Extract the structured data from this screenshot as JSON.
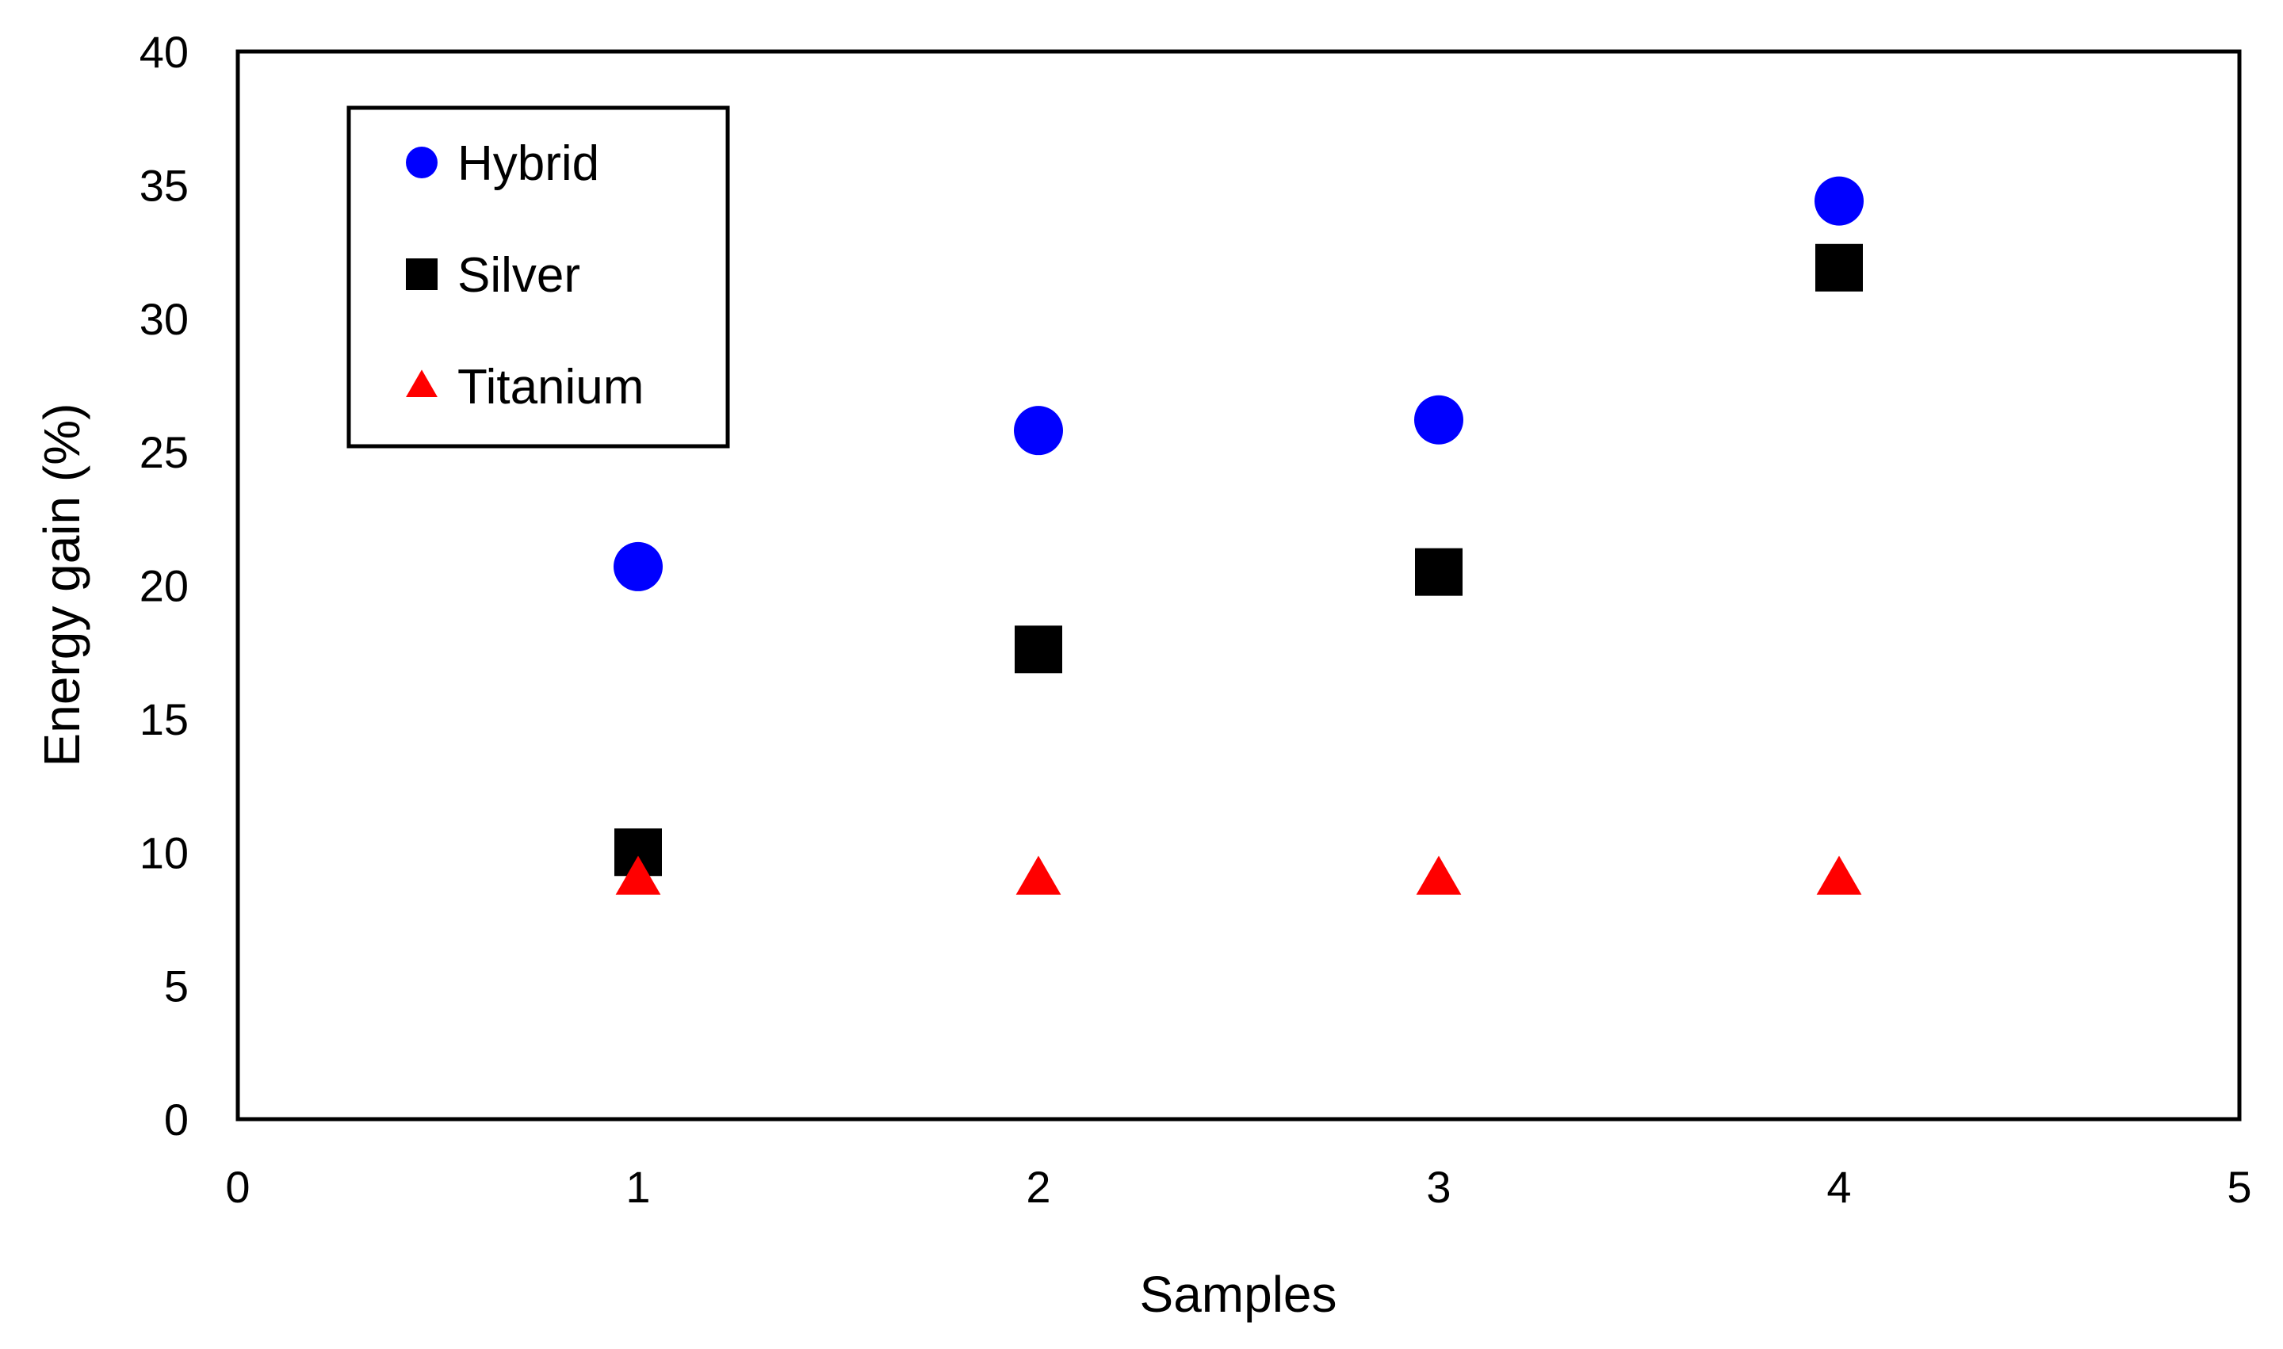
{
  "chart_data": {
    "type": "scatter",
    "title": "",
    "xlabel": "Samples",
    "ylabel": "Energy gain (%)",
    "xlim": [
      0,
      5
    ],
    "ylim": [
      0,
      40
    ],
    "xticks": [
      "0",
      "1",
      "2",
      "3",
      "4",
      "5"
    ],
    "yticks": [
      "0",
      "5",
      "10",
      "15",
      "20",
      "25",
      "30",
      "35",
      "40"
    ],
    "grid": false,
    "legend": "top-left",
    "series": [
      {
        "name": "Hybrid",
        "marker": "circle",
        "color": "#0000ff",
        "points": [
          {
            "x": 1,
            "y": 20.7
          },
          {
            "x": 2,
            "y": 25.8
          },
          {
            "x": 3,
            "y": 26.2
          },
          {
            "x": 4,
            "y": 34.4
          }
        ]
      },
      {
        "name": "Silver",
        "marker": "square",
        "color": "#000000",
        "points": [
          {
            "x": 1,
            "y": 10.0
          },
          {
            "x": 2,
            "y": 17.6
          },
          {
            "x": 3,
            "y": 20.5
          },
          {
            "x": 4,
            "y": 31.9
          }
        ]
      },
      {
        "name": "Titanium",
        "marker": "triangle",
        "color": "#ff0000",
        "points": [
          {
            "x": 1,
            "y": 9.0
          },
          {
            "x": 2,
            "y": 9.0
          },
          {
            "x": 3,
            "y": 9.0
          },
          {
            "x": 4,
            "y": 9.0
          }
        ]
      }
    ]
  }
}
